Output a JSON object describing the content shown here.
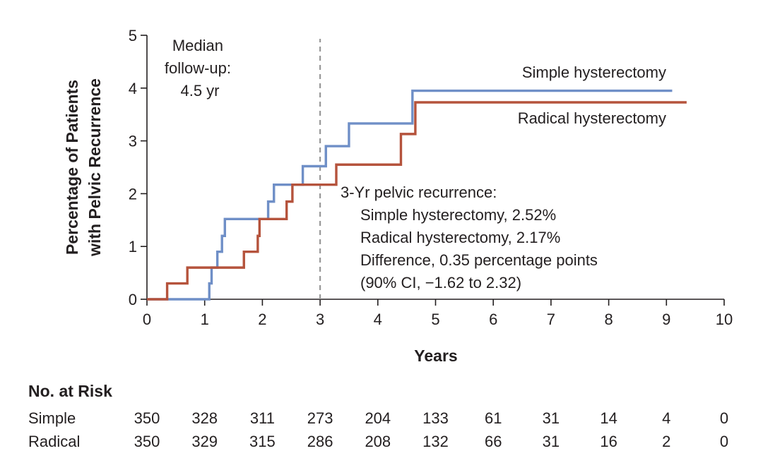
{
  "chart_data": {
    "type": "line",
    "step": true,
    "xlabel": "Years",
    "ylabel_lines": [
      "Percentage of Patients",
      "with Pelvic Recurrence"
    ],
    "xlim": [
      0,
      10
    ],
    "ylim": [
      0,
      5
    ],
    "x_ticks": [
      "0",
      "1",
      "2",
      "3",
      "4",
      "5",
      "6",
      "7",
      "8",
      "9",
      "10"
    ],
    "y_ticks": [
      "0",
      "1",
      "2",
      "3",
      "4",
      "5"
    ],
    "grid": false,
    "series": [
      {
        "name": "Simple hysterectomy",
        "color": "#6f8fc7",
        "points": [
          [
            0,
            0
          ],
          [
            1.08,
            0.3
          ],
          [
            1.12,
            0.6
          ],
          [
            1.22,
            0.9
          ],
          [
            1.3,
            1.2
          ],
          [
            1.35,
            1.52
          ],
          [
            1.9,
            1.52
          ],
          [
            2.1,
            1.85
          ],
          [
            2.2,
            2.17
          ],
          [
            2.7,
            2.52
          ],
          [
            3.1,
            2.9
          ],
          [
            3.5,
            3.33
          ],
          [
            4.6,
            3.95
          ],
          [
            9.1,
            3.95
          ]
        ]
      },
      {
        "name": "Radical hysterectomy",
        "color": "#b5533c",
        "points": [
          [
            0,
            0
          ],
          [
            0.35,
            0.3
          ],
          [
            0.7,
            0.6
          ],
          [
            1.68,
            0.9
          ],
          [
            1.92,
            1.2
          ],
          [
            1.95,
            1.52
          ],
          [
            2.42,
            1.85
          ],
          [
            2.52,
            2.17
          ],
          [
            3.28,
            2.55
          ],
          [
            4.4,
            3.13
          ],
          [
            4.65,
            3.73
          ],
          [
            9.35,
            3.73
          ]
        ]
      }
    ],
    "reference_line": {
      "x": 3,
      "style": "dashed",
      "color": "#999999"
    },
    "annotations": {
      "median": [
        "Median",
        "follow-up:",
        "4.5 yr"
      ],
      "pelvic": [
        "3-Yr pelvic recurrence:",
        "Simple hysterectomy, 2.52%",
        "Radical hysterectomy, 2.17%",
        "Difference, 0.35 percentage points",
        "(90% CI, −1.62 to 2.32)"
      ]
    },
    "risk_table": {
      "title": "No. at Risk",
      "rows": [
        {
          "label": "Simple",
          "values": [
            "350",
            "328",
            "311",
            "273",
            "204",
            "133",
            "61",
            "31",
            "14",
            "4",
            "0"
          ]
        },
        {
          "label": "Radical",
          "values": [
            "350",
            "329",
            "315",
            "286",
            "208",
            "132",
            "66",
            "31",
            "16",
            "2",
            "0"
          ]
        }
      ]
    }
  }
}
